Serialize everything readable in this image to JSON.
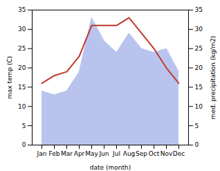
{
  "chart_data": {
    "type": "line",
    "xlabel": "date (month)",
    "ylabel": "max temp (C)",
    "y2label": "med. precipitation (kg/m2)",
    "categories": [
      "Jan",
      "Feb",
      "Mar",
      "Apr",
      "May",
      "Jun",
      "Jul",
      "Aug",
      "Sep",
      "Oct",
      "Nov",
      "Dec"
    ],
    "series": [
      {
        "type": "area",
        "axis": "y2",
        "color": "#b8c4ee",
        "values": [
          14,
          13,
          14,
          19,
          33,
          27,
          24,
          29,
          25,
          24,
          25,
          19
        ]
      },
      {
        "type": "line",
        "color": "#c0392b",
        "values": [
          16,
          18,
          19,
          23,
          31,
          31,
          31,
          33,
          29,
          25,
          20,
          16
        ]
      }
    ],
    "ylim": [
      0,
      35
    ],
    "yticks": [
      0,
      5,
      10,
      15,
      20,
      25,
      30,
      35
    ],
    "y2lim": [
      0,
      35
    ],
    "y2ticks": [
      0,
      5,
      10,
      15,
      20,
      25,
      30,
      35
    ]
  }
}
